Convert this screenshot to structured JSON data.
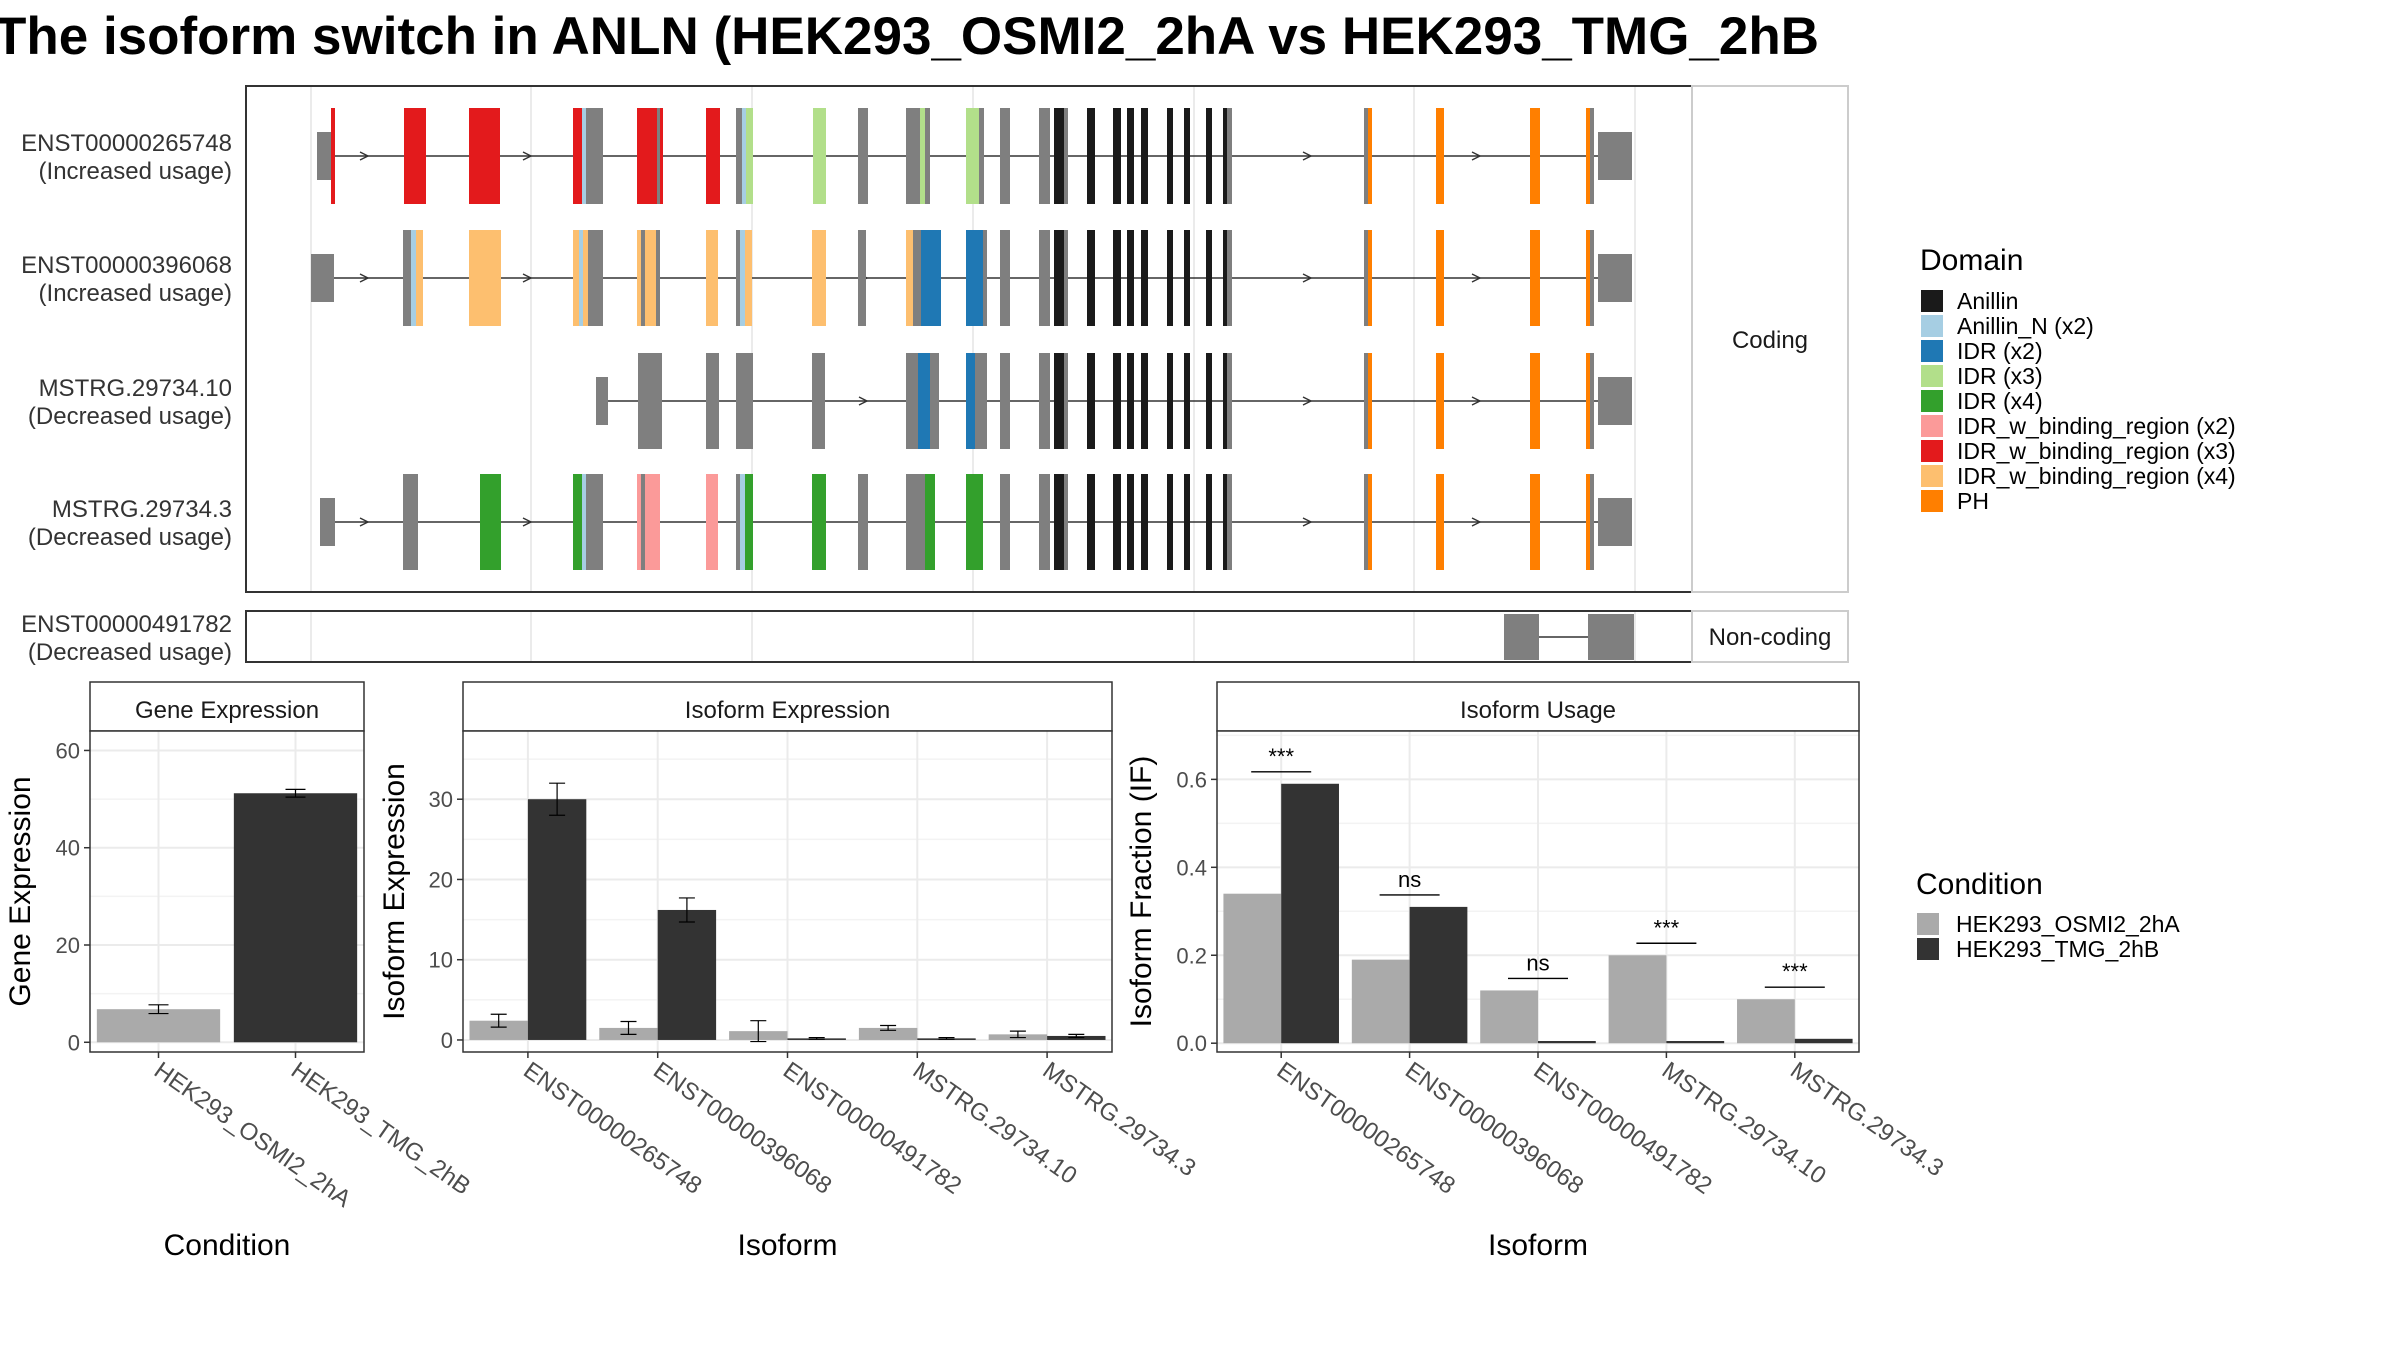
{
  "title": "The isoform switch in ANLN (HEK293_OSMI2_2hA vs HEK293_TMG_2hB",
  "structure": {
    "coding_label": "Coding",
    "noncoding_label": "Non-coding",
    "coding_transcripts": [
      {
        "id": "ENST00000265748",
        "usage": "(Increased usage)"
      },
      {
        "id": "ENST00000396068",
        "usage": "(Increased usage)"
      },
      {
        "id": "MSTRG.29734.10",
        "usage": "(Decreased usage)"
      },
      {
        "id": "MSTRG.29734.3",
        "usage": "(Decreased usage)"
      }
    ],
    "noncoding_transcripts": [
      {
        "id": "ENST00000491782",
        "usage": "(Decreased usage)"
      }
    ]
  },
  "domain_legend": {
    "title": "Domain",
    "items": [
      {
        "label": "Anillin",
        "color": "#1a1a1a"
      },
      {
        "label": "Anillin_N (x2)",
        "color": "#a6cee3"
      },
      {
        "label": "IDR (x2)",
        "color": "#1f78b4"
      },
      {
        "label": "IDR (x3)",
        "color": "#b2df8a"
      },
      {
        "label": "IDR (x4)",
        "color": "#33a02c"
      },
      {
        "label": "IDR_w_binding_region (x2)",
        "color": "#fb9a99"
      },
      {
        "label": "IDR_w_binding_region (x3)",
        "color": "#e31a1c"
      },
      {
        "label": "IDR_w_binding_region (x4)",
        "color": "#fdbf6f"
      },
      {
        "label": "PH",
        "color": "#ff7f00"
      }
    ]
  },
  "condition_legend": {
    "title": "Condition",
    "items": [
      {
        "label": "HEK293_OSMI2_2hA",
        "color": "#aaaaaa"
      },
      {
        "label": "HEK293_TMG_2hB",
        "color": "#333333"
      }
    ]
  },
  "chart_data": [
    {
      "type": "bar",
      "title": "Gene Expression",
      "xlabel": "Condition",
      "ylabel": "Gene Expression",
      "ylim": [
        -2,
        64
      ],
      "yticks": [
        0,
        20,
        40,
        60
      ],
      "categories": [
        "HEK293_OSMI2_2hA",
        "HEK293_TMG_2hB"
      ],
      "values": [
        6.8,
        51.2
      ],
      "errors": [
        0.9,
        0.8
      ],
      "colors": [
        "#aaaaaa",
        "#333333"
      ],
      "grid": true
    },
    {
      "type": "bar",
      "title": "Isoform Expression",
      "xlabel": "Isoform",
      "ylabel": "Isoform Expression",
      "ylim": [
        -1.5,
        38.5
      ],
      "yticks": [
        0,
        10,
        20,
        30
      ],
      "categories": [
        "ENST00000265748",
        "ENST00000396068",
        "ENST00000491782",
        "MSTRG.29734.10",
        "MSTRG.29734.3"
      ],
      "series": [
        {
          "name": "HEK293_OSMI2_2hA",
          "values": [
            2.4,
            1.5,
            1.1,
            1.5,
            0.7
          ],
          "errors": [
            0.8,
            0.8,
            1.3,
            0.3,
            0.4
          ]
        },
        {
          "name": "HEK293_TMG_2hB",
          "values": [
            30.0,
            16.2,
            0.2,
            0.2,
            0.5
          ],
          "errors": [
            2.0,
            1.5,
            0.1,
            0.1,
            0.2
          ]
        }
      ],
      "grid": true
    },
    {
      "type": "bar",
      "title": "Isoform Usage",
      "xlabel": "Isoform",
      "ylabel": "Isoform Fraction (IF)",
      "ylim": [
        -0.02,
        0.71
      ],
      "yticks": [
        0.0,
        0.2,
        0.4,
        0.6
      ],
      "ytick_labels": [
        "0.0",
        "0.2",
        "0.4",
        "0.6"
      ],
      "categories": [
        "ENST00000265748",
        "ENST00000396068",
        "ENST00000491782",
        "MSTRG.29734.10",
        "MSTRG.29734.3"
      ],
      "series": [
        {
          "name": "HEK293_OSMI2_2hA",
          "values": [
            0.34,
            0.19,
            0.12,
            0.2,
            0.1
          ]
        },
        {
          "name": "HEK293_TMG_2hB",
          "values": [
            0.59,
            0.31,
            0.005,
            0.005,
            0.01
          ]
        }
      ],
      "significance": [
        "***",
        "ns",
        "ns",
        "***",
        "***"
      ],
      "grid": true
    }
  ]
}
